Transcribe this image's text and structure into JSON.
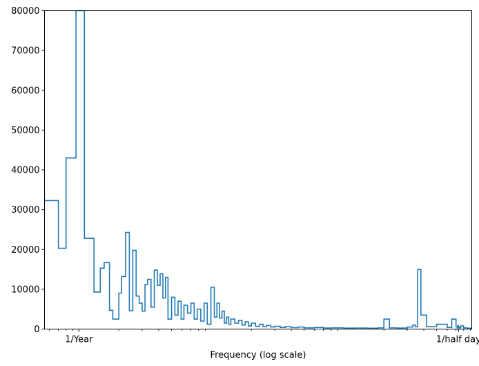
{
  "chart_data": {
    "type": "line",
    "title": "",
    "xlabel": "Frequency (log scale)",
    "ylabel": "",
    "x_scale": "log",
    "step": true,
    "xlim": [
      0.55,
      920
    ],
    "ylim": [
      0,
      80000
    ],
    "y_ticks": [
      0,
      10000,
      20000,
      30000,
      40000,
      50000,
      60000,
      70000,
      80000
    ],
    "x_ticks": [
      {
        "value": 1,
        "label": "1/Year"
      },
      {
        "value": 730.5,
        "label": "1/half day"
      }
    ],
    "grid": false,
    "legend": "none",
    "line_color": "#1f77b4",
    "series": [
      {
        "values_note_omitted": null,
        "x": [
          0.55,
          0.6,
          0.7,
          0.8,
          0.95,
          1.05,
          1.1,
          1.3,
          1.45,
          1.55,
          1.7,
          1.8,
          2.0,
          2.1,
          2.25,
          2.4,
          2.55,
          2.7,
          2.85,
          3.0,
          3.15,
          3.3,
          3.5,
          3.7,
          3.9,
          4.1,
          4.3,
          4.5,
          4.7,
          5.0,
          5.3,
          5.6,
          5.9,
          6.2,
          6.6,
          7.0,
          7.4,
          7.8,
          8.3,
          8.8,
          9.3,
          9.9,
          10.5,
          11.0,
          11.5,
          12.0,
          12.5,
          13.0,
          13.5,
          14.0,
          15.0,
          16.0,
          17.0,
          18.0,
          19.0,
          20.0,
          21.5,
          23.0,
          24.5,
          26.0,
          28.0,
          30.0,
          33.0,
          36.0,
          40.0,
          45.0,
          50.0,
          60.0,
          70.0,
          80.0,
          100.0,
          120.0,
          150.0,
          180.0,
          200.0,
          220.0,
          250.0,
          300.0,
          330.0,
          345.0,
          360.0,
          380.0,
          420.0,
          500.0,
          600.0,
          650.0,
          700.0,
          715.0,
          725.0,
          730.0,
          735.0,
          745.0,
          760.0,
          800.0,
          850.0,
          880.0,
          920.0
        ],
        "y": [
          32300,
          32300,
          20300,
          43000,
          80000,
          80000,
          22800,
          9300,
          15300,
          16700,
          4700,
          2500,
          9000,
          13200,
          24300,
          4600,
          19800,
          8300,
          6500,
          4500,
          11200,
          12500,
          5500,
          14800,
          11000,
          13900,
          7800,
          13000,
          2500,
          8000,
          3500,
          7000,
          2500,
          6000,
          4000,
          6500,
          2500,
          5000,
          2000,
          6500,
          1200,
          10500,
          3000,
          6500,
          2800,
          4500,
          1500,
          3000,
          1200,
          2500,
          1500,
          2200,
          1000,
          1800,
          800,
          1500,
          700,
          1200,
          600,
          900,
          500,
          700,
          400,
          600,
          350,
          500,
          300,
          400,
          250,
          300,
          220,
          250,
          200,
          300,
          2500,
          300,
          250,
          500,
          1000,
          600,
          15000,
          3500,
          600,
          1200,
          400,
          2500,
          600,
          300,
          1000,
          300,
          500,
          300,
          800,
          300,
          200,
          200,
          200
        ]
      }
    ]
  }
}
